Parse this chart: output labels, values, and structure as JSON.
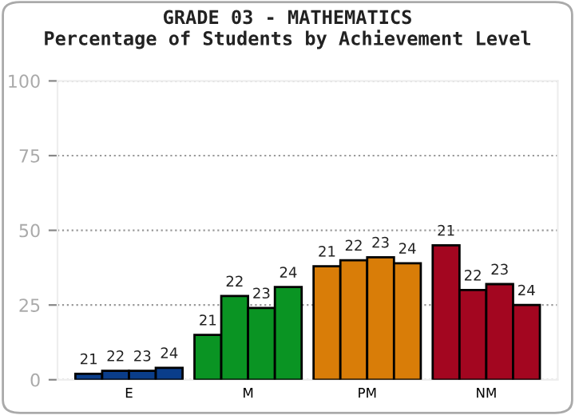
{
  "chart_data": {
    "type": "bar",
    "title": "GRADE 03 - MATHEMATICS",
    "subtitle": "Percentage of Students by Achievement Level",
    "categories": [
      "E",
      "M",
      "PM",
      "NM"
    ],
    "series": [
      {
        "name": "21",
        "colors": [
          "#0a3d8a",
          "#0a9423",
          "#d97d08",
          "#a30620"
        ],
        "values": [
          2,
          15,
          38,
          45
        ]
      },
      {
        "name": "22",
        "colors": [
          "#0a3d8a",
          "#0a9423",
          "#d97d08",
          "#a30620"
        ],
        "values": [
          3,
          28,
          40,
          30
        ]
      },
      {
        "name": "23",
        "colors": [
          "#0a3d8a",
          "#0a9423",
          "#d97d08",
          "#a30620"
        ],
        "values": [
          3,
          24,
          41,
          32
        ]
      },
      {
        "name": "24",
        "colors": [
          "#0a3d8a",
          "#0a9423",
          "#d97d08",
          "#a30620"
        ],
        "values": [
          4,
          31,
          39,
          25
        ]
      }
    ],
    "ylim": [
      0,
      100
    ],
    "yticks": [
      0,
      25,
      50,
      75,
      100
    ],
    "grid": "y",
    "legend": false
  }
}
